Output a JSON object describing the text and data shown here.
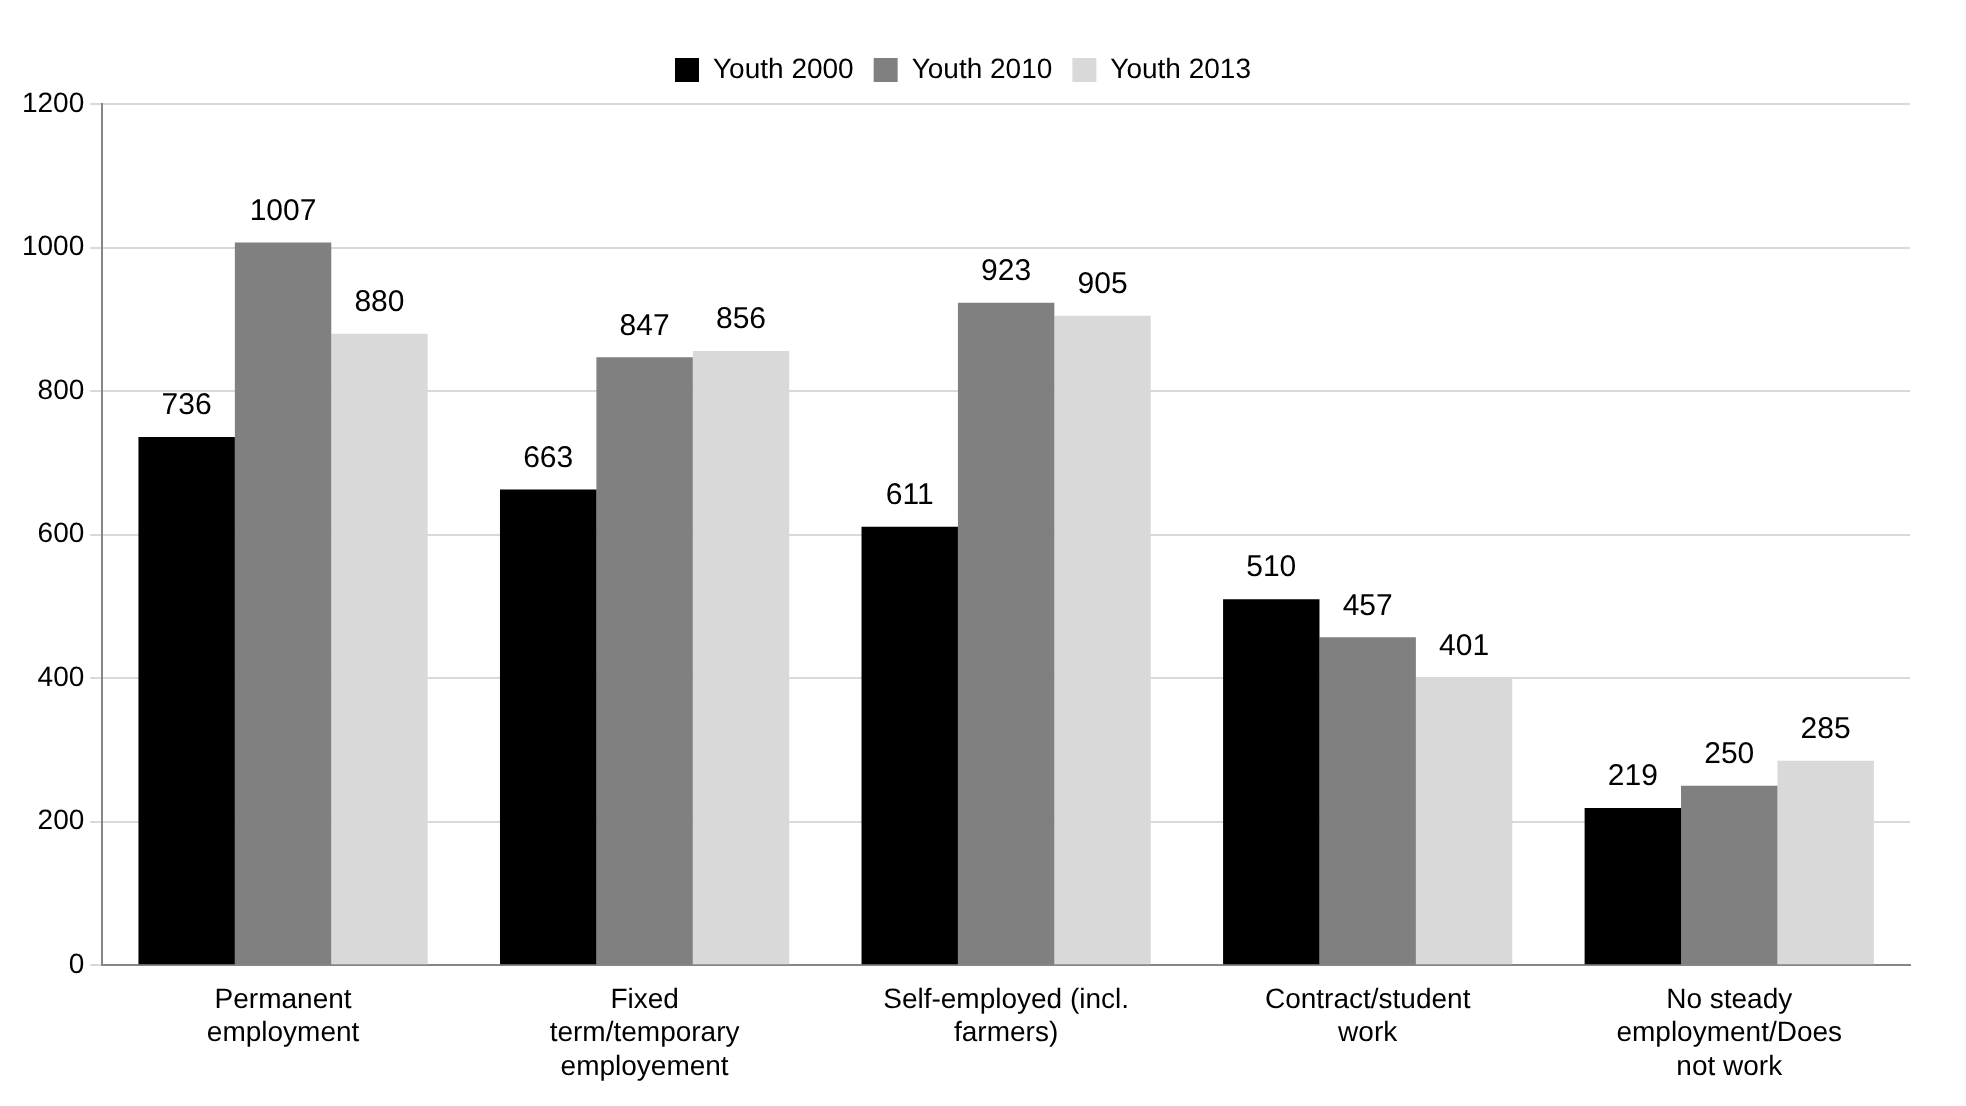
{
  "chart_data": {
    "type": "bar",
    "categories": [
      "Permanent employment",
      "Fixed term/temporary employement",
      "Self-employed (incl. farmers)",
      "Contract/student work",
      "No steady employment/Does not work"
    ],
    "series": [
      {
        "name": "Youth 2000",
        "color": "#000000",
        "values": [
          736,
          663,
          611,
          510,
          219
        ]
      },
      {
        "name": "Youth 2010",
        "color": "#808080",
        "values": [
          1007,
          847,
          923,
          457,
          250
        ]
      },
      {
        "name": "Youth 2013",
        "color": "#d9d9d9",
        "values": [
          880,
          856,
          905,
          401,
          285
        ]
      }
    ],
    "ylim": [
      0,
      1200
    ],
    "yticks": [
      0,
      200,
      400,
      600,
      800,
      1000,
      1200
    ],
    "grid": "y",
    "legend": "top",
    "data_labels": true
  }
}
